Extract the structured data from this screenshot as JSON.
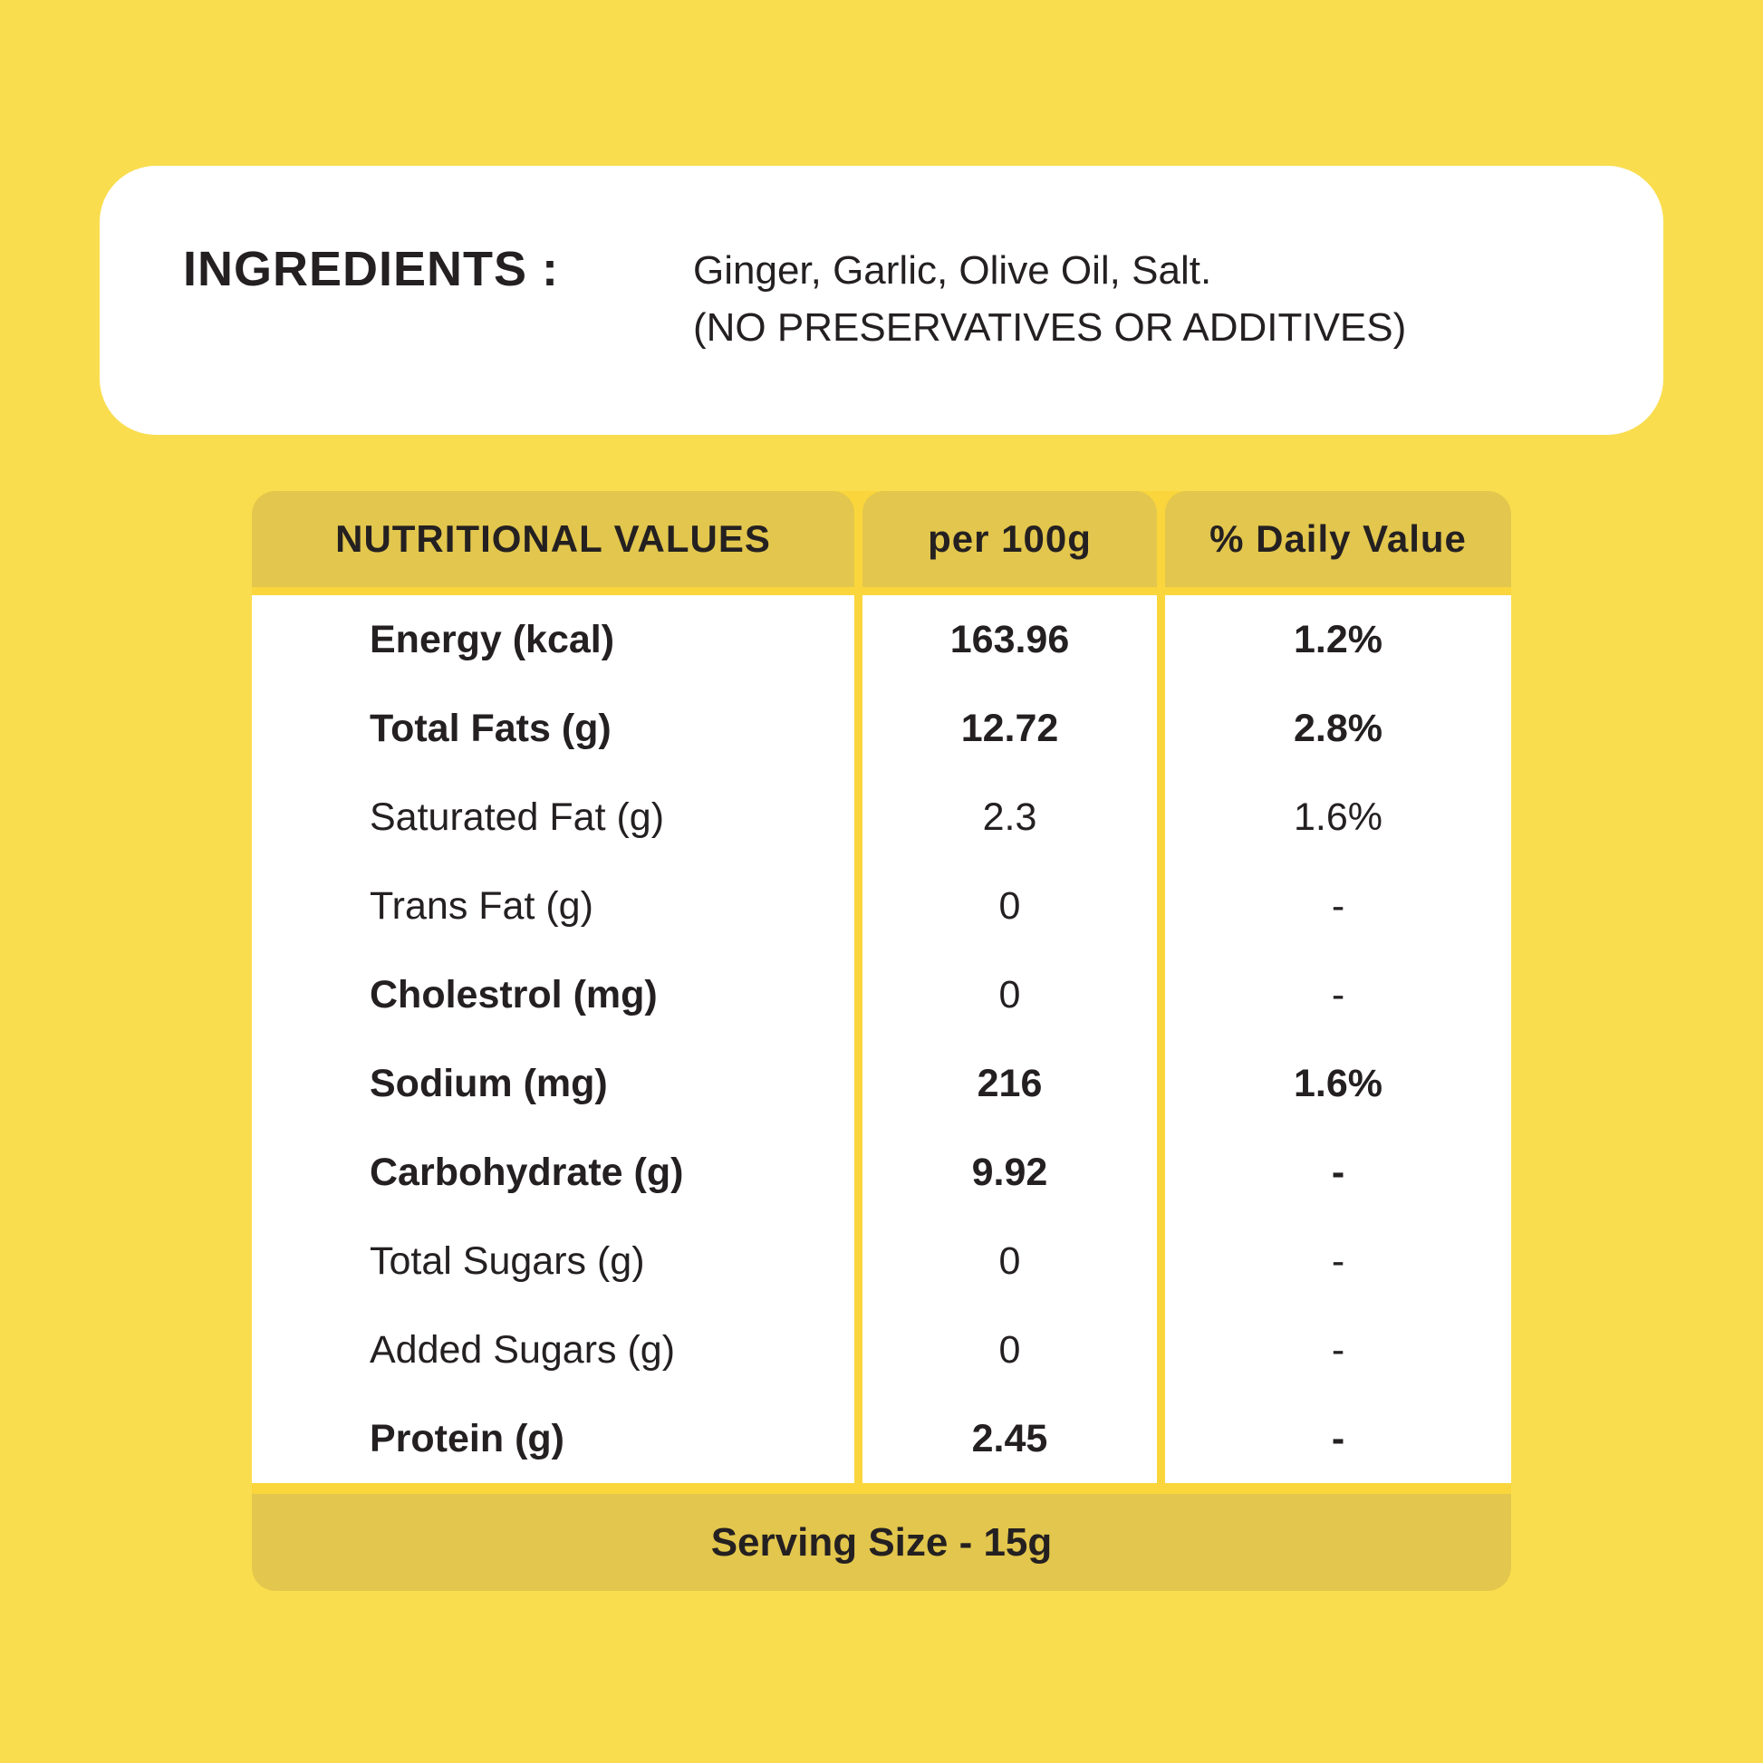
{
  "colors": {
    "page_background": "#F9DD4F",
    "panel_background": "#FFFFFF",
    "band_background": "#E2C64D",
    "divider_yellow": "#FAD63C",
    "text": "#242021"
  },
  "ingredients_card": {
    "heading": "INGREDIENTS :",
    "line1": "Ginger, Garlic, Olive Oil, Salt.",
    "line2": "(NO PRESERVATIVES OR ADDITIVES)"
  },
  "nutrition_table": {
    "headers": [
      "NUTRITIONAL VALUES",
      "per 100g",
      "% Daily Value"
    ],
    "rows": [
      {
        "label": "Energy (kcal)",
        "per_100g": "163.96",
        "daily_value": "1.2%",
        "label_bold": true,
        "value_bold": true,
        "dv_bold": true
      },
      {
        "label": "Total Fats (g)",
        "per_100g": "12.72",
        "daily_value": "2.8%",
        "label_bold": true,
        "value_bold": true,
        "dv_bold": true
      },
      {
        "label": "Saturated Fat (g)",
        "per_100g": "2.3",
        "daily_value": "1.6%",
        "label_bold": false,
        "value_bold": false,
        "dv_bold": false
      },
      {
        "label": "Trans Fat (g)",
        "per_100g": "0",
        "daily_value": "-",
        "label_bold": false,
        "value_bold": false,
        "dv_bold": false
      },
      {
        "label": "Cholestrol (mg)",
        "per_100g": "0",
        "daily_value": "-",
        "label_bold": true,
        "value_bold": false,
        "dv_bold": false
      },
      {
        "label": "Sodium (mg)",
        "per_100g": "216",
        "daily_value": "1.6%",
        "label_bold": true,
        "value_bold": true,
        "dv_bold": true
      },
      {
        "label": "Carbohydrate (g)",
        "per_100g": "9.92",
        "daily_value": "-",
        "label_bold": true,
        "value_bold": true,
        "dv_bold": true
      },
      {
        "label": "Total Sugars (g)",
        "per_100g": "0",
        "daily_value": "-",
        "label_bold": false,
        "value_bold": false,
        "dv_bold": false
      },
      {
        "label": "Added Sugars  (g)",
        "per_100g": "0",
        "daily_value": "-",
        "label_bold": false,
        "value_bold": false,
        "dv_bold": false
      },
      {
        "label": "Protein (g)",
        "per_100g": "2.45",
        "daily_value": "-",
        "label_bold": true,
        "value_bold": true,
        "dv_bold": true
      }
    ],
    "footer": "Serving Size - 15g"
  }
}
